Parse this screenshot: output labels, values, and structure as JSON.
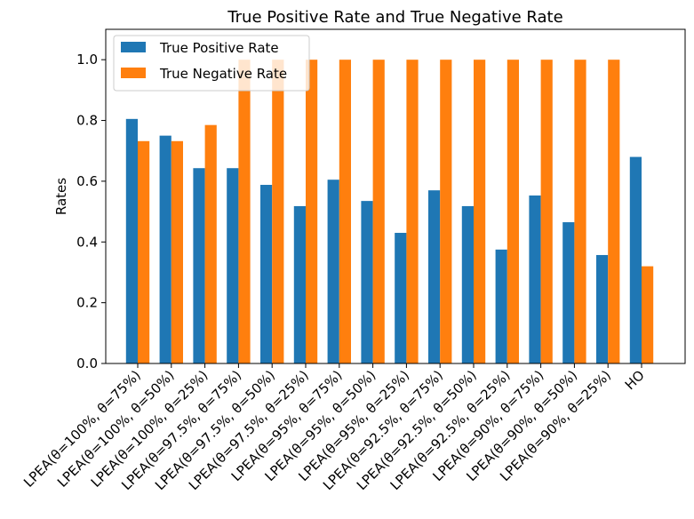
{
  "chart_data": {
    "type": "bar",
    "title": "True Positive Rate and True Negative Rate",
    "xlabel": "",
    "ylabel": "Rates",
    "ylim": [
      0,
      1.1
    ],
    "yticks": [
      "0.0",
      "0.2",
      "0.4",
      "0.6",
      "0.8",
      "1.0"
    ],
    "grid": false,
    "legend_position": "top-left",
    "categories": [
      "LPEA(θ=100%, θ=75%)",
      "LPEA(θ=100%, θ=50%)",
      "LPEA(θ=100%, θ=25%)",
      "LPEA(θ=97.5%, θ=75%)",
      "LPEA(θ=97.5%, θ=50%)",
      "LPEA(θ=97.5%, θ=25%)",
      "LPEA(θ=95%, θ=75%)",
      "LPEA(θ=95%, θ=50%)",
      "LPEA(θ=95%, θ=25%)",
      "LPEA(θ=92.5%, θ=75%)",
      "LPEA(θ=92.5%, θ=50%)",
      "LPEA(θ=92.5%, θ=25%)",
      "LPEA(θ=90%, θ=75%)",
      "LPEA(θ=90%, θ=50%)",
      "LPEA(θ=90%, θ=25%)",
      "HO"
    ],
    "series": [
      {
        "name": "True Positive Rate",
        "color": "#1f77b4",
        "values": [
          0.805,
          0.75,
          0.643,
          0.643,
          0.588,
          0.518,
          0.605,
          0.535,
          0.43,
          0.57,
          0.518,
          0.375,
          0.553,
          0.465,
          0.357,
          0.68
        ]
      },
      {
        "name": "True Negative Rate",
        "color": "#ff7f0e",
        "values": [
          0.732,
          0.732,
          0.785,
          1.0,
          1.0,
          1.0,
          1.0,
          1.0,
          1.0,
          1.0,
          1.0,
          1.0,
          1.0,
          1.0,
          1.0,
          0.32
        ]
      }
    ]
  }
}
